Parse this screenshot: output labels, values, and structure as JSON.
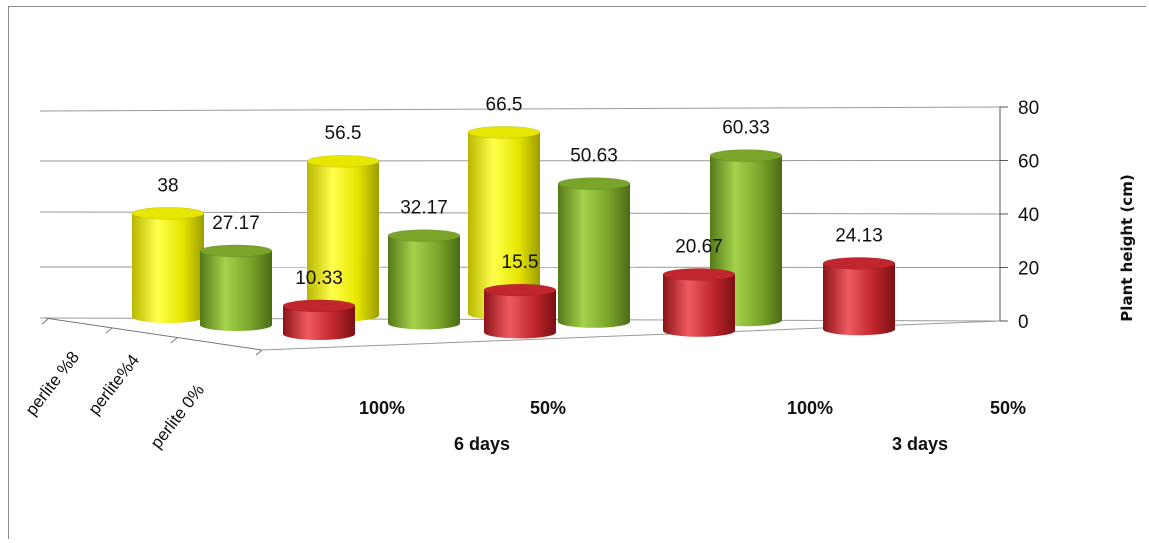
{
  "chart_data": {
    "type": "bar",
    "style": "3d-cylinder",
    "ylabel": "Plant height (cm)",
    "ylim": [
      0,
      80
    ],
    "yticks": [
      "0",
      "20",
      "40",
      "60",
      "80"
    ],
    "grid": true,
    "groups": [
      {
        "label": "6  days",
        "categories": [
          "100%",
          "50%"
        ]
      },
      {
        "label": "3 days",
        "categories": [
          "100%",
          "50%"
        ]
      }
    ],
    "series": [
      {
        "name": "perlite %8",
        "color": "#e6e600",
        "values": [
          38,
          56.5,
          66.5,
          null
        ],
        "labels": [
          "38",
          "56.5",
          "66.5",
          ""
        ]
      },
      {
        "name": "perlite%4",
        "color": "#7aa52a",
        "values": [
          27.17,
          32.17,
          50.63,
          60.33
        ],
        "labels": [
          "27.17",
          "32.17",
          "50.63",
          "60.33"
        ]
      },
      {
        "name": "perlite 0%",
        "color": "#c0262b",
        "values": [
          10.33,
          15.5,
          20.67,
          24.13
        ],
        "labels": [
          "10.33",
          "15.5",
          "20.67",
          "24.13"
        ]
      }
    ]
  }
}
